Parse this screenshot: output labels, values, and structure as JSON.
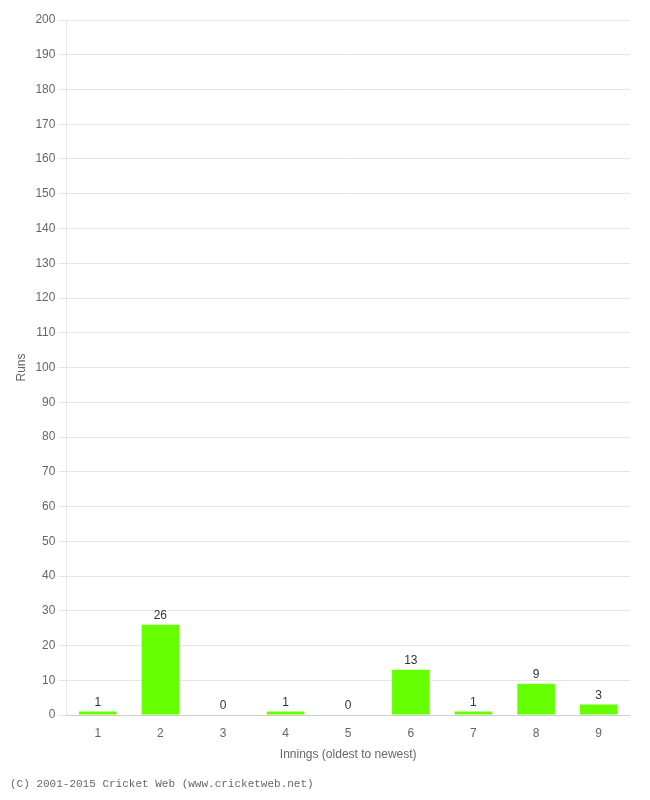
{
  "chart_data": {
    "type": "bar",
    "categories": [
      "1",
      "2",
      "3",
      "4",
      "5",
      "6",
      "7",
      "8",
      "9"
    ],
    "values": [
      1,
      26,
      0,
      1,
      0,
      13,
      1,
      9,
      3
    ],
    "color": "#66ff00",
    "x_label": "Innings (oldest to newest)",
    "y_label": "Runs",
    "ylim": [
      0,
      200
    ],
    "yticks": [
      0,
      10,
      20,
      30,
      40,
      50,
      60,
      70,
      80,
      90,
      100,
      110,
      120,
      130,
      140,
      150,
      160,
      170,
      180,
      190,
      200
    ],
    "grid": true,
    "data_labels": true,
    "annotations": [
      "(C) 2001-2015 Cricket Web (www.cricketweb.net)"
    ]
  }
}
